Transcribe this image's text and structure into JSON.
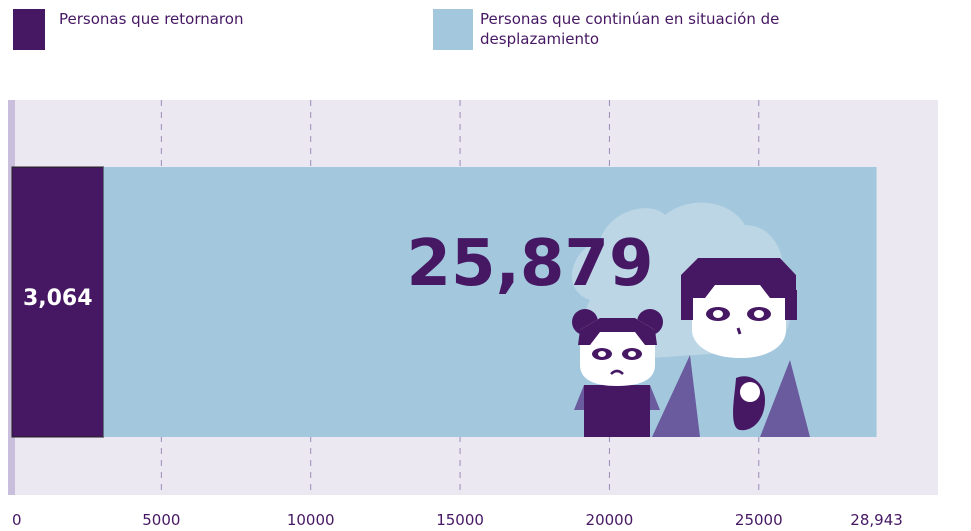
{
  "chart_data": {
    "type": "stacked-bar",
    "orientation": "horizontal",
    "series": [
      {
        "name": "Personas que retornaron",
        "color": "#461863",
        "values": [
          3064
        ],
        "value_labels": [
          "3,064"
        ]
      },
      {
        "name": "Personas que continúan en situación de desplazamiento",
        "color": "#a3c8dd",
        "values": [
          25879
        ],
        "value_labels": [
          "25,879"
        ]
      }
    ],
    "xlim": [
      0,
      31000
    ],
    "xticks": [
      0,
      5000,
      10000,
      15000,
      20000,
      25000,
      {
        "value": 28943,
        "label": "28,943"
      }
    ],
    "grid": true
  }
}
